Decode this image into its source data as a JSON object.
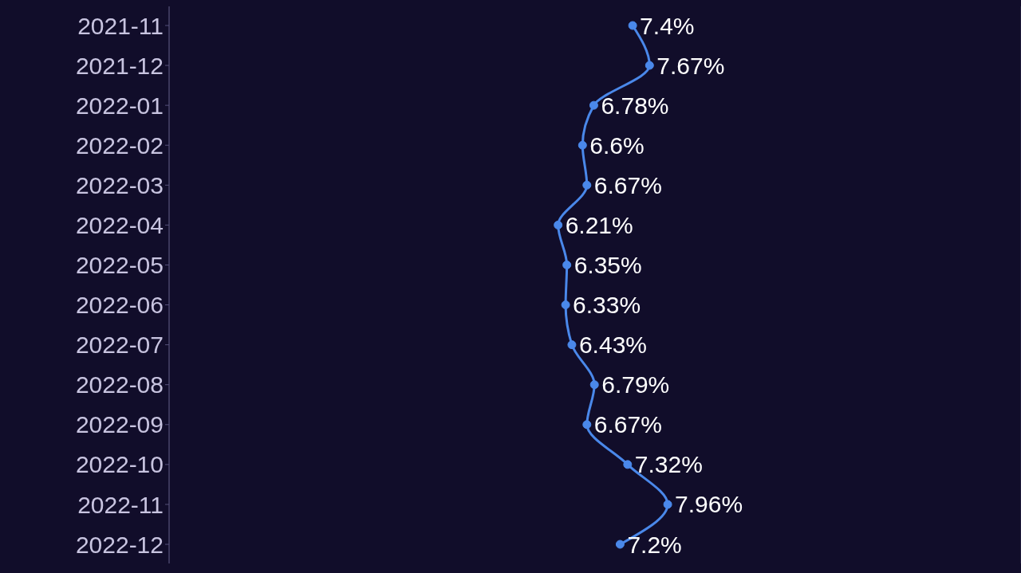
{
  "chart_data": {
    "type": "line",
    "orientation": "horizontal",
    "categories": [
      "2021-11",
      "2021-12",
      "2022-01",
      "2022-02",
      "2022-03",
      "2022-04",
      "2022-05",
      "2022-06",
      "2022-07",
      "2022-08",
      "2022-09",
      "2022-10",
      "2022-11",
      "2022-12"
    ],
    "series": [
      {
        "color": "#4a88ea",
        "values": [
          7.4,
          7.67,
          6.78,
          6.6,
          6.67,
          6.21,
          6.35,
          6.33,
          6.43,
          6.79,
          6.67,
          7.32,
          7.96,
          7.2
        ],
        "value_labels": [
          "7.4%",
          "7.67%",
          "6.78%",
          "6.6%",
          "6.67%",
          "6.21%",
          "6.35%",
          "6.33%",
          "6.43%",
          "6.79%",
          "6.67%",
          "7.32%",
          "7.96%",
          "7.2%"
        ]
      }
    ],
    "xlim": [
      0,
      13.6
    ],
    "grid": "x",
    "marker": "circle",
    "tick_labels": "y"
  }
}
